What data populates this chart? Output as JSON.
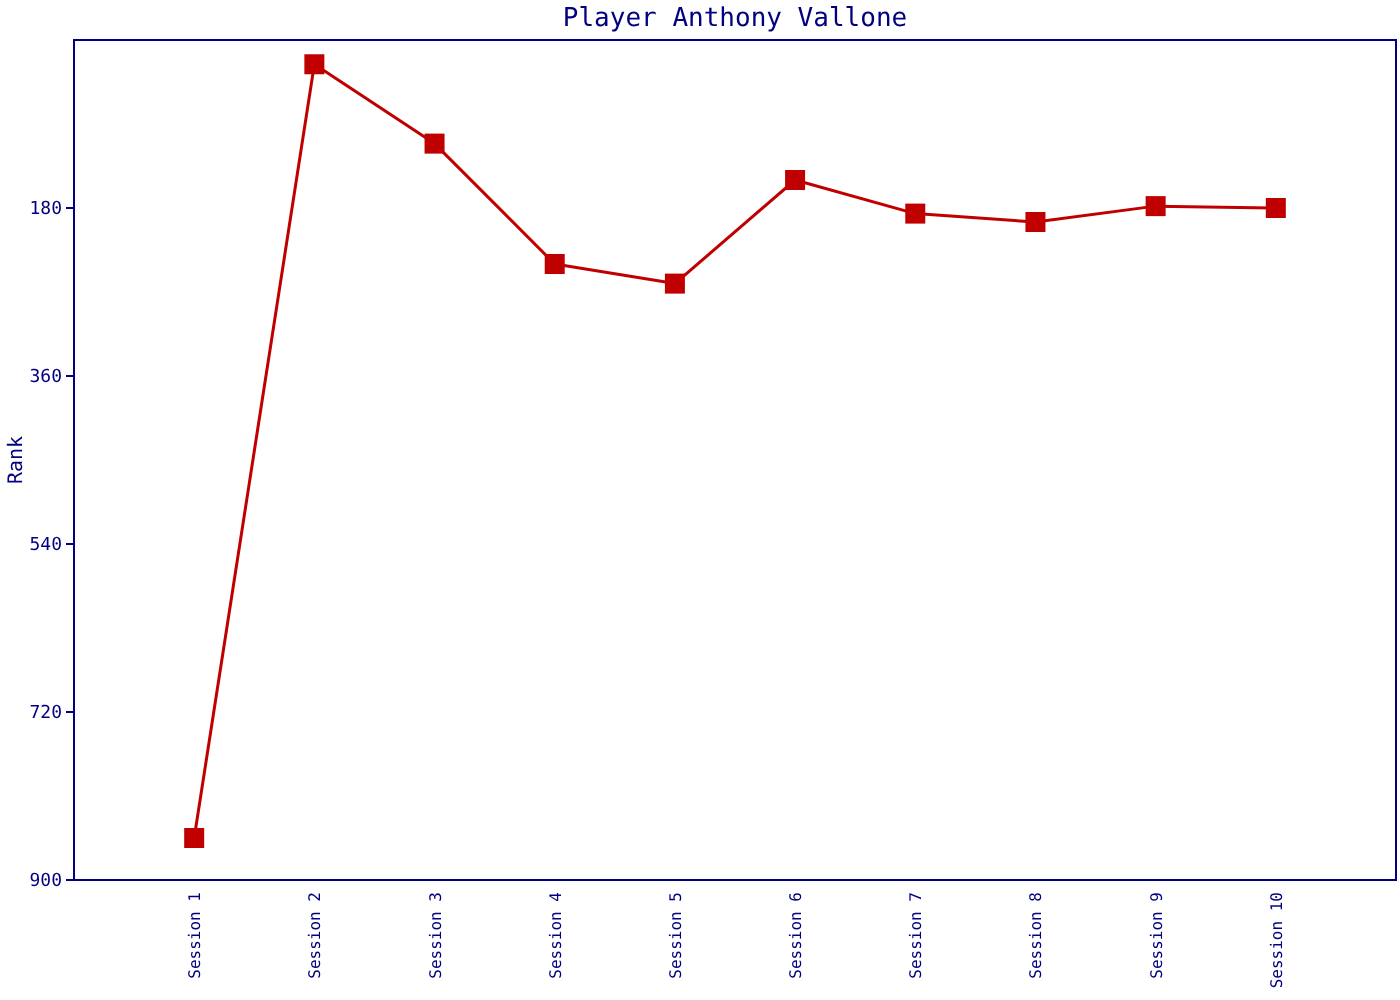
{
  "chart_data": {
    "type": "line",
    "title": "Player Anthony Vallone",
    "ylabel": "Rank",
    "categories": [
      "Session 1",
      "Session 2",
      "Session 3",
      "Session 4",
      "Session 5",
      "Session 6",
      "Session 7",
      "Session 8",
      "Session 9",
      "Session 10"
    ],
    "series": [
      {
        "color": "#c00000",
        "values": [
          855,
          26,
          111,
          240,
          261,
          150,
          186,
          195,
          178,
          180
        ]
      }
    ],
    "ylim": [
      900,
      0
    ],
    "yticks": [
      180,
      360,
      540,
      720,
      900
    ],
    "grid": false,
    "marker": "square",
    "line_style": "solid"
  }
}
